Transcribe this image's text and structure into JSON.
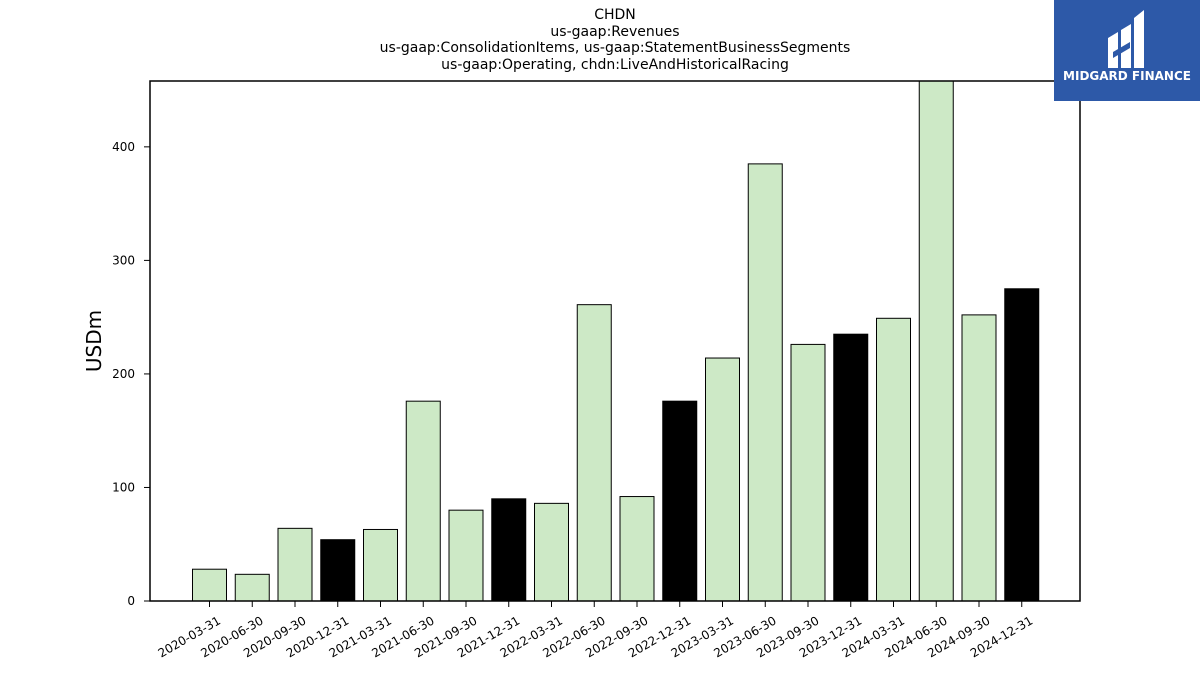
{
  "chart_data": {
    "type": "bar",
    "title_lines": [
      "CHDN",
      "us-gaap:Revenues",
      "us-gaap:ConsolidationItems, us-gaap:StatementBusinessSegments",
      "us-gaap:Operating, chdn:LiveAndHistoricalRacing"
    ],
    "xlabel": "",
    "ylabel": "USDm",
    "ylim": [
      0,
      458
    ],
    "yticks": [
      0,
      100,
      200,
      300,
      400
    ],
    "categories": [
      "2020-03-31",
      "2020-06-30",
      "2020-09-30",
      "2020-12-31",
      "2021-03-31",
      "2021-06-30",
      "2021-09-30",
      "2021-12-31",
      "2022-03-31",
      "2022-06-30",
      "2022-09-30",
      "2022-12-31",
      "2023-03-31",
      "2023-06-30",
      "2023-09-30",
      "2023-12-31",
      "2024-03-31",
      "2024-06-30",
      "2024-09-30",
      "2024-12-31"
    ],
    "values": [
      28,
      23.5,
      64,
      54,
      63,
      176,
      80,
      90,
      86,
      261,
      92,
      176,
      214,
      385,
      226,
      235,
      249,
      458,
      252,
      275
    ],
    "highlight_indices": [
      3,
      7,
      11,
      15,
      19
    ],
    "colors": {
      "bar": "#cde9c6",
      "highlight": "#000000",
      "edge": "#000000"
    },
    "grid": false
  },
  "logo": {
    "text": "MIDGARD FINANCE",
    "background": "#2d59a8"
  }
}
